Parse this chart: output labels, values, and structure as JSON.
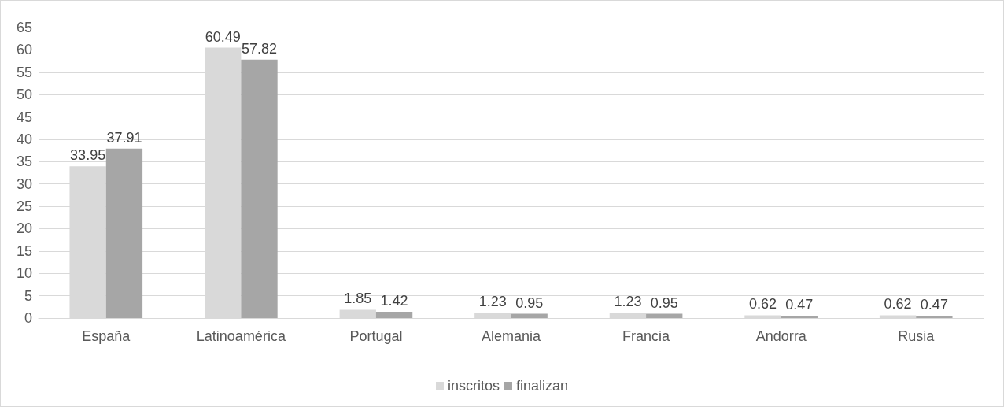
{
  "chart_data": {
    "type": "bar",
    "categories": [
      "España",
      "Latinoamérica",
      "Portugal",
      "Alemania",
      "Francia",
      "Andorra",
      "Rusia"
    ],
    "series": [
      {
        "name": "inscritos",
        "color": "#d9d9d9",
        "values": [
          33.95,
          60.49,
          1.85,
          1.23,
          1.23,
          0.62,
          0.62
        ]
      },
      {
        "name": "finalizan",
        "color": "#a6a6a6",
        "values": [
          37.91,
          57.82,
          1.42,
          0.95,
          0.95,
          0.47,
          0.47
        ]
      }
    ],
    "ylim": [
      0,
      65
    ],
    "yticks": [
      0,
      5,
      10,
      15,
      20,
      25,
      30,
      35,
      40,
      45,
      50,
      55,
      60,
      65
    ],
    "grid": "y",
    "legend": "bottom",
    "data_labels": true
  }
}
